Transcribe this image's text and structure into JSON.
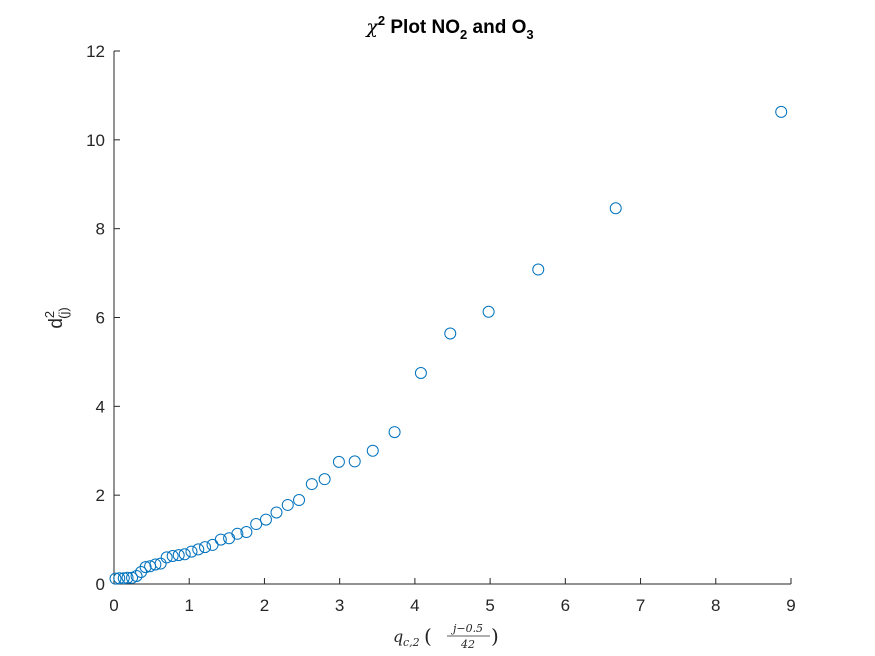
{
  "chart_data": {
    "type": "scatter",
    "title": {
      "symbol": "χ",
      "symbol_sup": "2",
      "part1": " Plot NO",
      "sub1": "2",
      "part2": " and O",
      "sub2": "3"
    },
    "ylabel": {
      "base": "d",
      "sup": "2",
      "sub": "(j)"
    },
    "xlabel": {
      "base": "q",
      "sub": "c,2",
      "frac_num": "j−0.5",
      "frac_den": "42"
    },
    "xlim": [
      0,
      9
    ],
    "ylim": [
      0,
      12
    ],
    "x_ticks": [
      0,
      1,
      2,
      3,
      4,
      5,
      6,
      7,
      8,
      9
    ],
    "y_ticks": [
      0,
      2,
      4,
      6,
      8,
      10,
      12
    ],
    "grid": false,
    "marker": "open-circle",
    "series_color": "#0072BD",
    "points": [
      [
        0.02,
        0.12
      ],
      [
        0.07,
        0.13
      ],
      [
        0.13,
        0.13
      ],
      [
        0.18,
        0.14
      ],
      [
        0.24,
        0.14
      ],
      [
        0.3,
        0.18
      ],
      [
        0.36,
        0.27
      ],
      [
        0.42,
        0.38
      ],
      [
        0.48,
        0.4
      ],
      [
        0.55,
        0.44
      ],
      [
        0.62,
        0.46
      ],
      [
        0.7,
        0.6
      ],
      [
        0.78,
        0.63
      ],
      [
        0.86,
        0.65
      ],
      [
        0.94,
        0.67
      ],
      [
        1.03,
        0.73
      ],
      [
        1.12,
        0.78
      ],
      [
        1.21,
        0.83
      ],
      [
        1.31,
        0.88
      ],
      [
        1.42,
        1.0
      ],
      [
        1.53,
        1.03
      ],
      [
        1.64,
        1.13
      ],
      [
        1.76,
        1.17
      ],
      [
        1.89,
        1.35
      ],
      [
        2.02,
        1.45
      ],
      [
        2.16,
        1.61
      ],
      [
        2.31,
        1.78
      ],
      [
        2.46,
        1.89
      ],
      [
        2.63,
        2.25
      ],
      [
        2.8,
        2.36
      ],
      [
        2.99,
        2.75
      ],
      [
        3.2,
        2.76
      ],
      [
        3.44,
        3.0
      ],
      [
        3.73,
        3.42
      ],
      [
        4.08,
        4.75
      ],
      [
        4.47,
        5.64
      ],
      [
        4.98,
        6.13
      ],
      [
        5.64,
        7.08
      ],
      [
        6.67,
        8.46
      ],
      [
        8.87,
        10.63
      ]
    ]
  }
}
